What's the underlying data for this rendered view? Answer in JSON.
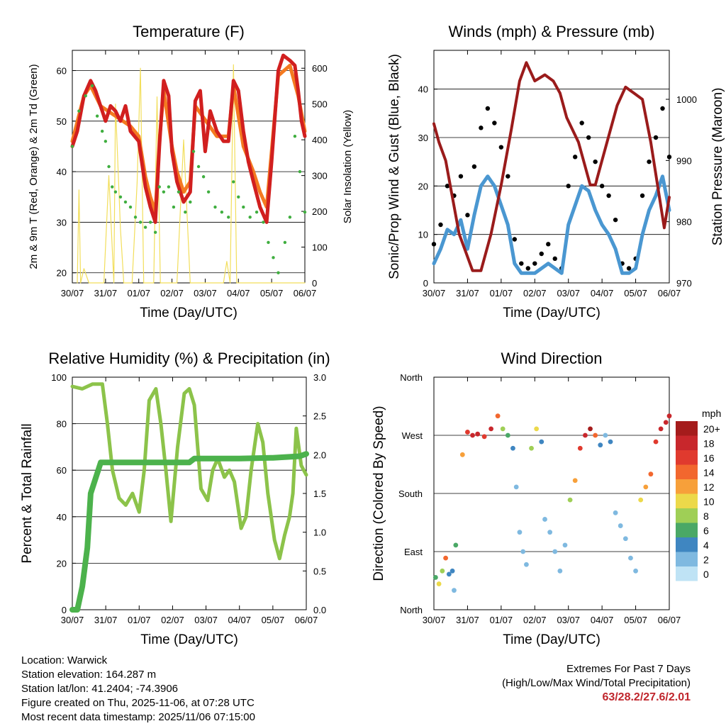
{
  "colors": {
    "red": "#d11f1f",
    "orange": "#f47a20",
    "green": "#3fae3f",
    "yellow": "#f2de5b",
    "black": "#000000",
    "blue": "#4a97d1",
    "maroon": "#9a1b1b",
    "rh": "#8cc34a",
    "rain": "#4cb24c",
    "extremes": "#c0262d"
  },
  "x_ticks": [
    "30/07",
    "31/07",
    "01/07",
    "02/07",
    "03/07",
    "04/07",
    "05/07",
    "06/07"
  ],
  "x_axis_label": "Time (Day/UTC)",
  "footer": {
    "location": "Location: Warwick",
    "elevation": "Station elevation: 164.287 m",
    "latlon": "Station lat/lon: 41.2404; -74.3906",
    "created": "Figure created on Thu, 2025-11-06, at 07:28 UTC",
    "recent": "Most recent data timestamp: 2025/11/06 07:15:00",
    "extremes_title": "Extremes For Past 7 Days",
    "extremes_sub": "(High/Low/Max Wind/Total Precipitation)",
    "extremes_value": "63/28.2/27.6/2.01"
  },
  "chart_data": [
    {
      "type": "line",
      "title": "Temperature (F)",
      "xlabel": "Time (Day/UTC)",
      "ylabel": "2m & 9m T (Red, Orange) & 2m Td (Green)",
      "y2label": "Solar Insolation (Yellow)",
      "ylim": [
        18,
        64
      ],
      "yticks": [
        20,
        30,
        40,
        50,
        60
      ],
      "y2lim": [
        0,
        650
      ],
      "y2ticks": [
        0,
        100,
        200,
        300,
        400,
        500,
        600
      ],
      "series": [
        {
          "name": "2m T",
          "color": "red",
          "axis": "left",
          "x": [
            0,
            0.15,
            0.35,
            0.55,
            0.7,
            0.85,
            1.0,
            1.15,
            1.3,
            1.45,
            1.6,
            1.75,
            2.0,
            2.2,
            2.35,
            2.5,
            2.62,
            2.75,
            2.9,
            3.0,
            3.15,
            3.35,
            3.55,
            3.7,
            3.85,
            4.0,
            4.15,
            4.35,
            4.55,
            4.7,
            4.85,
            5.0,
            5.15,
            5.3,
            5.45,
            5.65,
            5.85,
            6.0,
            6.2,
            6.35,
            6.55,
            6.7,
            6.8,
            6.9,
            7.0
          ],
          "y": [
            45,
            48,
            55,
            58,
            56,
            53,
            50,
            53,
            52,
            50,
            53,
            48,
            46,
            37,
            33,
            30,
            45,
            58,
            55,
            44,
            38,
            34,
            36,
            54,
            56,
            44,
            52,
            48,
            46,
            46,
            58,
            56,
            48,
            42,
            38,
            33,
            30,
            42,
            60,
            63,
            62,
            61,
            56,
            50,
            47
          ]
        },
        {
          "name": "9m T",
          "color": "orange",
          "axis": "left",
          "x": [
            0,
            0.35,
            0.55,
            0.85,
            1.3,
            1.75,
            2.0,
            2.2,
            2.35,
            2.5,
            2.62,
            2.75,
            3.0,
            3.15,
            3.35,
            3.55,
            3.7,
            4.35,
            4.7,
            4.85,
            5.15,
            5.45,
            5.65,
            5.85,
            6.0,
            6.2,
            6.55,
            6.8,
            7.0
          ],
          "y": [
            46,
            55,
            57,
            53,
            51,
            49,
            47,
            39,
            35,
            32,
            46,
            56,
            45,
            40,
            36,
            38,
            53,
            47,
            47,
            57,
            45,
            40,
            36,
            33,
            44,
            59,
            61,
            55,
            48
          ]
        },
        {
          "name": "2m Td",
          "color": "green",
          "axis": "left",
          "x": [
            0,
            0.2,
            0.4,
            0.6,
            0.75,
            0.9,
            1.0,
            1.1,
            1.2,
            1.3,
            1.45,
            1.6,
            1.75,
            1.9,
            2.05,
            2.2,
            2.35,
            2.5,
            2.62,
            2.75,
            2.9,
            3.05,
            3.2,
            3.4,
            3.55,
            3.65,
            3.8,
            3.95,
            4.1,
            4.3,
            4.5,
            4.7,
            4.85,
            5.0,
            5.15,
            5.35,
            5.55,
            5.75,
            5.9,
            6.05,
            6.2,
            6.4,
            6.55,
            6.7,
            6.85,
            7.0
          ],
          "y": [
            45,
            52,
            55,
            57,
            51,
            48,
            46,
            41,
            37,
            36,
            35,
            34,
            33,
            31,
            30,
            29,
            30,
            28,
            37,
            36,
            37,
            33,
            36,
            32,
            34,
            44,
            41,
            39,
            36,
            33,
            32,
            31,
            38,
            35,
            33,
            31,
            32,
            30,
            26,
            23,
            20,
            26,
            31,
            47,
            40,
            32
          ]
        },
        {
          "name": "Solar",
          "color": "yellow",
          "axis": "right",
          "x": [
            0.15,
            0.2,
            0.25,
            0.35,
            0.5,
            0.55,
            0.8,
            0.95,
            1.1,
            1.25,
            1.3,
            1.45,
            1.55,
            1.6,
            1.8,
            1.95,
            2.05,
            2.15,
            2.25,
            2.45,
            2.55,
            2.65,
            2.75,
            2.95,
            3.15,
            3.35,
            3.55,
            3.7,
            3.85,
            3.95,
            4.1,
            4.35,
            4.55,
            4.65,
            4.75,
            4.85,
            4.95,
            5.15,
            5.3,
            5.55,
            5.7,
            5.85,
            6.0,
            6.15,
            6.35,
            6.5,
            6.6,
            6.8,
            7.0
          ],
          "y": [
            0,
            260,
            0,
            40,
            0,
            0,
            0,
            0,
            300,
            0,
            500,
            150,
            0,
            0,
            0,
            280,
            600,
            0,
            0,
            0,
            520,
            0,
            0,
            0,
            0,
            400,
            0,
            0,
            0,
            0,
            0,
            0,
            0,
            60,
            0,
            610,
            0,
            0,
            0,
            0,
            0,
            0,
            0,
            0,
            0,
            0,
            0,
            0,
            0
          ]
        }
      ]
    },
    {
      "type": "scatter",
      "title": "Winds (mph) & Pressure (mb)",
      "xlabel": "Time (Day/UTC)",
      "ylabel": "Sonic/Prop Wind & Gust (Blue, Black)",
      "y2label": "Station Pressure (Maroon)",
      "ylim": [
        0,
        48
      ],
      "yticks": [
        0,
        10,
        20,
        30,
        40
      ],
      "y2lim": [
        970,
        1008
      ],
      "y2ticks": [
        970,
        980,
        990,
        1000
      ],
      "series": [
        {
          "name": "Gust",
          "color": "black",
          "axis": "left",
          "x": [
            0,
            0.2,
            0.4,
            0.6,
            0.8,
            1.0,
            1.2,
            1.4,
            1.6,
            1.8,
            2.0,
            2.2,
            2.4,
            2.6,
            2.8,
            3.0,
            3.2,
            3.4,
            3.6,
            3.8,
            4.0,
            4.2,
            4.4,
            4.6,
            4.8,
            5.0,
            5.2,
            5.4,
            5.6,
            5.8,
            6.0,
            6.2,
            6.4,
            6.6,
            6.8,
            7.0
          ],
          "y": [
            8,
            12,
            20,
            18,
            22,
            14,
            24,
            32,
            36,
            33,
            28,
            22,
            9,
            4,
            3,
            4,
            6,
            8,
            5,
            3,
            20,
            26,
            33,
            30,
            25,
            20,
            18,
            13,
            4,
            3,
            5,
            18,
            25,
            30,
            36,
            26
          ]
        },
        {
          "name": "Wind",
          "color": "blue",
          "axis": "left",
          "x": [
            0,
            0.2,
            0.4,
            0.6,
            0.8,
            1.0,
            1.2,
            1.4,
            1.6,
            1.8,
            2.0,
            2.2,
            2.4,
            2.6,
            2.8,
            3.0,
            3.2,
            3.4,
            3.6,
            3.8,
            4.0,
            4.2,
            4.4,
            4.6,
            4.8,
            5.0,
            5.2,
            5.4,
            5.6,
            5.8,
            6.0,
            6.2,
            6.4,
            6.6,
            6.8,
            7.0
          ],
          "y": [
            4,
            7,
            11,
            10,
            13,
            7,
            14,
            20,
            22,
            20,
            16,
            12,
            4,
            2,
            2,
            2,
            3,
            4,
            3,
            2,
            12,
            16,
            20,
            19,
            15,
            12,
            10,
            7,
            2,
            2,
            3,
            10,
            15,
            18,
            22,
            15
          ]
        },
        {
          "name": "Pressure",
          "color": "maroon",
          "axis": "right",
          "x": [
            0,
            0.15,
            0.35,
            0.55,
            0.75,
            0.95,
            1.15,
            1.4,
            1.7,
            2.0,
            2.3,
            2.55,
            2.75,
            3.0,
            3.3,
            3.55,
            3.75,
            3.95,
            4.3,
            4.5,
            4.65,
            4.8,
            5.0,
            5.2,
            5.45,
            5.7,
            5.95,
            6.2,
            6.45,
            6.65,
            6.85,
            7.0
          ],
          "y": [
            996,
            993,
            990,
            984,
            978,
            975,
            972,
            972,
            978,
            986,
            995,
            1003,
            1006,
            1003,
            1004,
            1003,
            1001,
            997,
            993,
            989,
            986,
            986,
            990,
            994,
            999,
            1002,
            1001,
            1000,
            993,
            986,
            979,
            984
          ]
        }
      ]
    },
    {
      "type": "line",
      "title": "Relative Humidity (%) & Precipitation (in)",
      "xlabel": "Time (Day/UTC)",
      "ylabel": "Percent & Total Rainfall",
      "ylim": [
        0,
        100
      ],
      "yticks": [
        0,
        20,
        40,
        60,
        80,
        100
      ],
      "y2lim": [
        0,
        3.0
      ],
      "y2ticks": [
        "0.0",
        "0.5",
        "1.0",
        "1.5",
        "2.0",
        "2.5",
        "3.0"
      ],
      "series": [
        {
          "name": "RH",
          "color": "rh",
          "axis": "left",
          "x": [
            0,
            0.3,
            0.6,
            0.9,
            1.05,
            1.2,
            1.4,
            1.6,
            1.8,
            2.0,
            2.15,
            2.3,
            2.5,
            2.65,
            2.8,
            2.95,
            3.15,
            3.35,
            3.5,
            3.65,
            3.85,
            4.05,
            4.2,
            4.35,
            4.55,
            4.7,
            4.85,
            5.05,
            5.2,
            5.35,
            5.55,
            5.7,
            5.85,
            6.05,
            6.2,
            6.35,
            6.5,
            6.6,
            6.7,
            6.85,
            7.0
          ],
          "y": [
            96,
            95,
            97,
            97,
            80,
            60,
            48,
            45,
            50,
            42,
            60,
            90,
            95,
            80,
            60,
            38,
            70,
            93,
            95,
            88,
            52,
            47,
            60,
            65,
            57,
            60,
            55,
            35,
            40,
            60,
            80,
            72,
            50,
            30,
            22,
            32,
            40,
            50,
            78,
            62,
            58
          ]
        },
        {
          "name": "Rain",
          "color": "rain",
          "axis": "right",
          "x": [
            0,
            0.15,
            0.3,
            0.45,
            0.55,
            0.7,
            0.85,
            1.0,
            2.0,
            3.0,
            3.5,
            3.65,
            4.0,
            5.0,
            6.0,
            6.8,
            7.0
          ],
          "y": [
            0,
            0,
            0.3,
            0.8,
            1.5,
            1.7,
            1.9,
            1.9,
            1.9,
            1.9,
            1.9,
            1.95,
            1.95,
            1.95,
            1.96,
            1.98,
            2.01
          ]
        }
      ]
    },
    {
      "type": "scatter",
      "title": "Wind Direction",
      "xlabel": "Time (Day/UTC)",
      "ylabel": "Direction (Colored By Speed)",
      "yticks": [
        "North",
        "East",
        "South",
        "West",
        "North"
      ],
      "ylim": [
        0,
        360
      ],
      "legend_title": "mph",
      "legend_labels": [
        "20+",
        "18",
        "16",
        "14",
        "12",
        "10",
        "8",
        "6",
        "4",
        "2",
        "0"
      ],
      "legend_colors": [
        "#a51c1c",
        "#c8272c",
        "#e03a2e",
        "#f2672e",
        "#f7a03a",
        "#ecd94a",
        "#9fcf56",
        "#4aa866",
        "#3f86c1",
        "#7fb9e0",
        "#bfe3f5"
      ],
      "series": [
        {
          "name": "direction",
          "x": [
            0.05,
            0.15,
            0.25,
            0.35,
            0.45,
            0.55,
            0.6,
            0.65,
            0.85,
            1.0,
            1.15,
            1.3,
            1.5,
            1.7,
            1.9,
            2.05,
            2.2,
            2.35,
            2.45,
            2.55,
            2.65,
            2.75,
            2.9,
            3.05,
            3.2,
            3.3,
            3.45,
            3.6,
            3.75,
            3.9,
            4.05,
            4.2,
            4.35,
            4.5,
            4.65,
            4.8,
            4.95,
            5.1,
            5.25,
            5.4,
            5.55,
            5.7,
            5.85,
            6.0,
            6.15,
            6.3,
            6.45,
            6.6,
            6.75,
            6.9,
            7.0
          ],
          "y": [
            50,
            40,
            60,
            80,
            55,
            60,
            30,
            100,
            240,
            275,
            270,
            272,
            268,
            280,
            300,
            280,
            270,
            250,
            190,
            120,
            90,
            70,
            250,
            280,
            260,
            140,
            120,
            90,
            60,
            100,
            170,
            200,
            250,
            270,
            280,
            270,
            255,
            270,
            260,
            150,
            130,
            110,
            80,
            60,
            170,
            190,
            210,
            260,
            280,
            290,
            300
          ],
          "speed": [
            6,
            10,
            8,
            14,
            4,
            3,
            2,
            6,
            12,
            16,
            18,
            17,
            16,
            18,
            14,
            8,
            6,
            4,
            2,
            1,
            2,
            1,
            8,
            10,
            4,
            2,
            1,
            2,
            1,
            1,
            8,
            12,
            16,
            18,
            20,
            14,
            4,
            2,
            3,
            2,
            1,
            1,
            1,
            2,
            10,
            12,
            14,
            16,
            18,
            18,
            18
          ]
        }
      ]
    }
  ]
}
